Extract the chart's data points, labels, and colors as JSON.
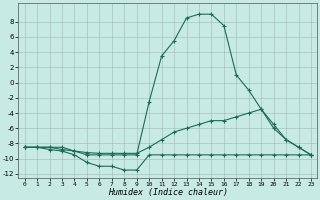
{
  "xlabel": "Humidex (Indice chaleur)",
  "xlim": [
    -0.5,
    23.5
  ],
  "ylim": [
    -12.5,
    10.5
  ],
  "yticks": [
    -12,
    -10,
    -8,
    -6,
    -4,
    -2,
    0,
    2,
    4,
    6,
    8
  ],
  "xticks": [
    0,
    1,
    2,
    3,
    4,
    5,
    6,
    7,
    8,
    9,
    10,
    11,
    12,
    13,
    14,
    15,
    16,
    17,
    18,
    19,
    20,
    21,
    22,
    23
  ],
  "background_color": "#c8eae4",
  "grid_color": "#a0b8b4",
  "line_color": "#1a6b5a",
  "series": [
    {
      "x": [
        0,
        1,
        2,
        3,
        4,
        5,
        6,
        7,
        8,
        9,
        10,
        11,
        12,
        13,
        14,
        15,
        16,
        17,
        18,
        19,
        20,
        21,
        22,
        23
      ],
      "y": [
        -8.5,
        -8.5,
        -8.5,
        -8.5,
        -9.0,
        -9.5,
        -9.5,
        -9.5,
        -9.5,
        -9.5,
        -2.5,
        3.5,
        5.5,
        8.5,
        9.0,
        9.0,
        7.5,
        1.0,
        -1.0,
        -3.5,
        -5.5,
        -7.5,
        -8.5,
        -9.5
      ]
    },
    {
      "x": [
        0,
        1,
        2,
        3,
        4,
        5,
        6,
        7,
        8,
        9,
        10,
        11,
        12,
        13,
        14,
        15,
        16,
        17,
        18,
        19,
        20,
        21,
        22,
        23
      ],
      "y": [
        -8.5,
        -8.5,
        -8.5,
        -8.8,
        -9.0,
        -9.2,
        -9.3,
        -9.3,
        -9.3,
        -9.3,
        -8.5,
        -7.5,
        -6.5,
        -6.0,
        -5.5,
        -5.0,
        -5.0,
        -4.5,
        -4.0,
        -3.5,
        -6.0,
        -7.5,
        -8.5,
        -9.5
      ]
    },
    {
      "x": [
        0,
        1,
        2,
        3,
        4,
        5,
        6,
        7,
        8,
        9,
        10,
        11,
        12,
        13,
        14,
        15,
        16,
        17,
        18,
        19,
        20,
        21,
        22,
        23
      ],
      "y": [
        -8.5,
        -8.5,
        -8.8,
        -9.0,
        -9.5,
        -10.5,
        -11.0,
        -11.0,
        -11.5,
        -11.5,
        -9.5,
        -9.5,
        -9.5,
        -9.5,
        -9.5,
        -9.5,
        -9.5,
        -9.5,
        -9.5,
        -9.5,
        -9.5,
        -9.5,
        -9.5,
        -9.5
      ]
    }
  ]
}
